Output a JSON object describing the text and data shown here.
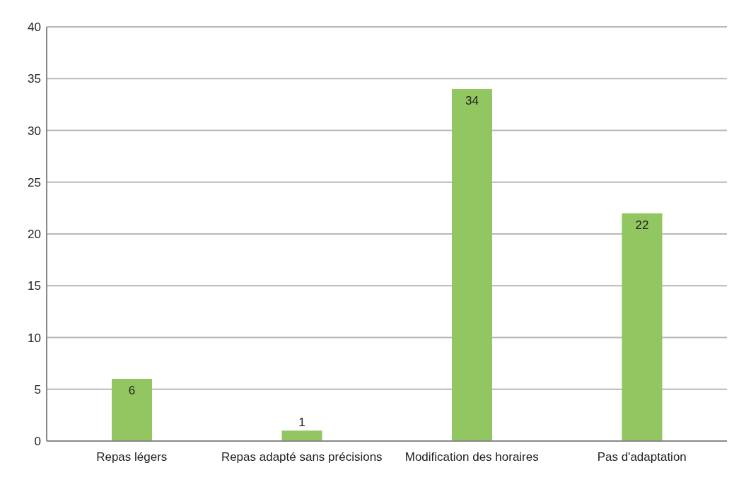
{
  "chart_data": {
    "type": "bar",
    "categories": [
      "Repas légers",
      "Repas adapté sans précisions",
      "Modification des horaires",
      "Pas d'adaptation"
    ],
    "values": [
      6,
      1,
      34,
      22
    ],
    "color": "#92c660",
    "ylim": [
      0,
      40
    ],
    "yticks": [
      0,
      5,
      10,
      15,
      20,
      25,
      30,
      35,
      40
    ],
    "grid": "y",
    "data_labels": true
  }
}
